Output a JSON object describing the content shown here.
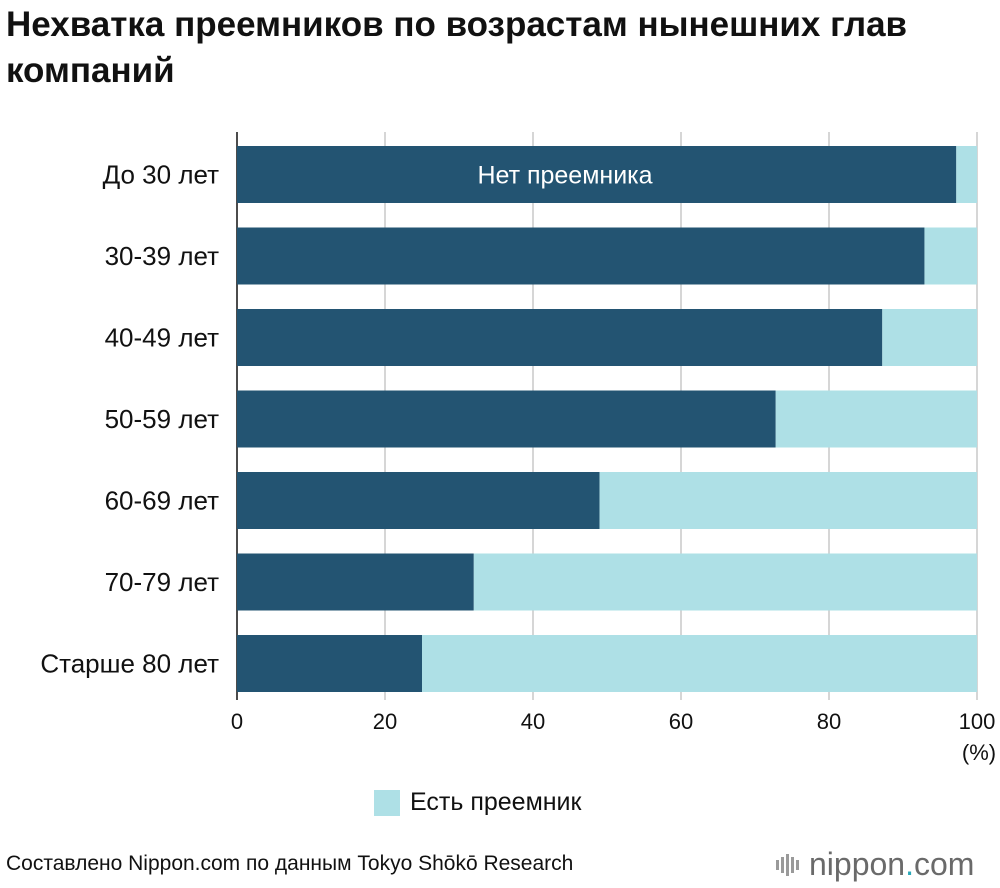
{
  "title": "Нехватка преемников по возрастам нынешних глав компаний",
  "source": "Составлено Nippon.com по данным Tokyo Shōkō Research",
  "logo": {
    "name": "nippon",
    "dot": ".",
    "suffix": "com"
  },
  "colors": {
    "no_successor": "#235472",
    "has_successor": "#aee0e6",
    "grid": "#c8c8c8"
  },
  "chart_data": {
    "type": "bar",
    "orientation": "horizontal",
    "stacked": true,
    "categories": [
      "До 30 лет",
      "30-39 лет",
      "40-49 лет",
      "50-59 лет",
      "60-69 лет",
      "70-79 лет",
      "Старше 80 лет"
    ],
    "series": [
      {
        "name": "Нет преемника",
        "values": [
          97.2,
          92.9,
          87.2,
          72.8,
          49.0,
          32.0,
          25.0
        ]
      },
      {
        "name": "Есть преемник",
        "values": [
          2.8,
          7.1,
          12.8,
          27.2,
          51.0,
          68.0,
          75.0
        ]
      }
    ],
    "xlim": [
      0,
      100
    ],
    "xticks": [
      0,
      20,
      40,
      60,
      80,
      100
    ],
    "xunit": "(%)",
    "grid": true,
    "legend": {
      "label": "Есть преемник",
      "placement": "bottom"
    },
    "inbar_label": "Нет преемника"
  }
}
